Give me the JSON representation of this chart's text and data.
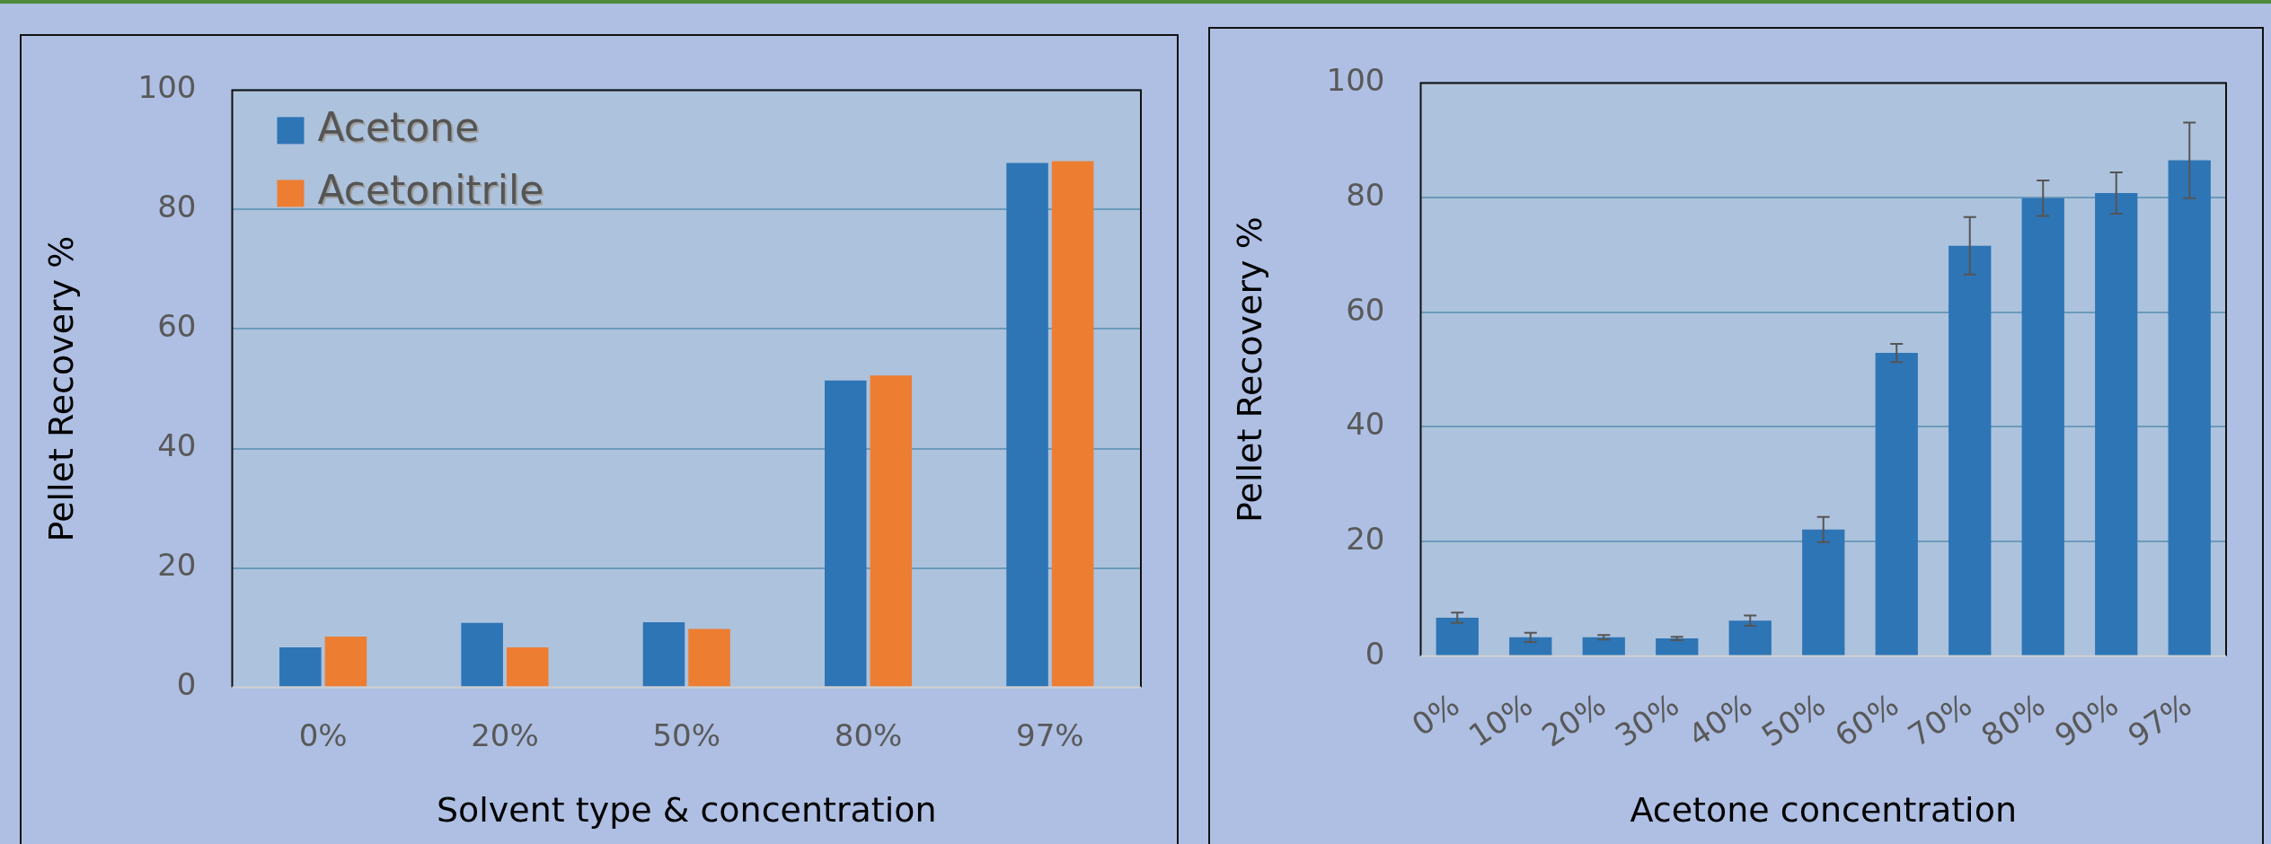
{
  "chart_data": [
    {
      "type": "bar",
      "xlabel": "Solvent type & concentration",
      "ylabel": "Pellet Recovery %",
      "categories": [
        "0%",
        "20%",
        "50%",
        "80%",
        "97%"
      ],
      "series": [
        {
          "name": "Acetone",
          "color": "#2e75b6",
          "values": [
            6.7,
            10.8,
            10.9,
            51.4,
            87.8
          ]
        },
        {
          "name": "Acetonitrile",
          "color": "#ed7d31",
          "values": [
            8.5,
            6.7,
            9.8,
            52.2,
            88.1
          ]
        }
      ],
      "ylim": [
        0,
        100
      ],
      "yticks": [
        0,
        20,
        40,
        60,
        80,
        100
      ],
      "grid": "y",
      "legend": "top left"
    },
    {
      "type": "bar",
      "xlabel": "Acetone concentration",
      "ylabel": "Pellet Recovery %",
      "categories": [
        "0%",
        "10%",
        "20%",
        "30%",
        "40%",
        "50%",
        "60%",
        "70%",
        "80%",
        "90%",
        "97%"
      ],
      "values": [
        6.7,
        3.3,
        3.3,
        3.1,
        6.2,
        22.1,
        52.9,
        71.6,
        79.9,
        80.8,
        86.5
      ],
      "color": "#2e75b6",
      "errors": [
        0.9,
        0.8,
        0.4,
        0.3,
        0.9,
        2.2,
        1.6,
        5.0,
        3.1,
        3.6,
        6.6
      ],
      "ylim": [
        0,
        100
      ],
      "yticks": [
        0,
        20,
        40,
        60,
        80,
        100
      ],
      "grid": "y"
    }
  ]
}
